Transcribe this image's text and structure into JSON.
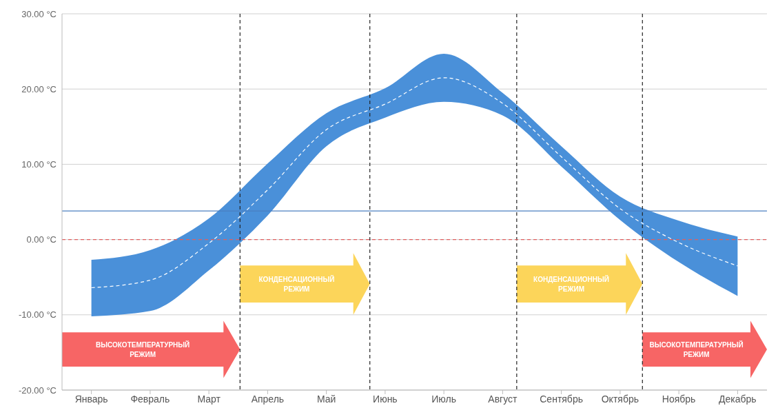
{
  "chart_data": {
    "type": "line",
    "categories": [
      "Январь",
      "Февраль",
      "Март",
      "Апрель",
      "Май",
      "Июнь",
      "Июль",
      "Август",
      "Сентябрь",
      "Октябрь",
      "Ноябрь",
      "Декабрь"
    ],
    "ylim": [
      -20,
      30
    ],
    "yticks": [
      {
        "value": -20,
        "label": "-20.00 °C"
      },
      {
        "value": -10,
        "label": "-10.00 °C"
      },
      {
        "value": 0,
        "label": "0.00 °C"
      },
      {
        "value": 10,
        "label": "10.00 °C"
      },
      {
        "value": 20,
        "label": "20.00 °C"
      },
      {
        "value": 30,
        "label": "30.00 °C"
      }
    ],
    "series": [
      {
        "color": "#ffffff",
        "line_style": "dashed",
        "values": [
          -6.4,
          -5.4,
          -0.5,
          6.6,
          14.6,
          18.0,
          21.5,
          18.1,
          11.0,
          4.1,
          -0.4,
          -3.5
        ],
        "lower": [
          -10.2,
          -9.5,
          -4.1,
          3.2,
          12.4,
          16.2,
          18.3,
          16.5,
          9.7,
          2.6,
          -3.0,
          -7.5
        ],
        "upper": [
          -2.7,
          -1.4,
          2.8,
          10.1,
          16.8,
          20.1,
          24.7,
          19.5,
          12.4,
          5.7,
          2.5,
          0.4
        ]
      }
    ],
    "ref_lines": [
      {
        "axis": "y",
        "value": 3.8,
        "color": "#4a7fc1",
        "line_style": "solid"
      },
      {
        "axis": "y",
        "value": 0,
        "color": "#e06060",
        "line_style": "dashed"
      }
    ],
    "annotations": [
      "ВЫСОКОТЕМПЕРАТУРНЫЙ РЕЖИМ",
      "КОНДЕНСАЦИОННЫЙ РЕЖИМ",
      "КОНДЕНСАЦИОННЫЙ РЕЖИМ",
      "ВЫСОКОТЕМПЕРАТУРНЫЙ РЕЖИМ"
    ],
    "grid": "y"
  }
}
